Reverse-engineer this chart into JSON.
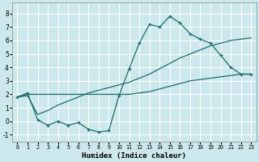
{
  "xlabel": "Humidex (Indice chaleur)",
  "xlim": [
    -0.5,
    23.5
  ],
  "ylim": [
    -1.5,
    8.8
  ],
  "xticks": [
    0,
    1,
    2,
    3,
    4,
    5,
    6,
    7,
    8,
    9,
    10,
    11,
    12,
    13,
    14,
    15,
    16,
    17,
    18,
    19,
    20,
    21,
    22,
    23
  ],
  "yticks": [
    -1,
    0,
    1,
    2,
    3,
    4,
    5,
    6,
    7,
    8
  ],
  "bg_color": "#cce8ec",
  "grid_color": "#ffffff",
  "line_color": "#1a6e6a",
  "line1_x": [
    0,
    1,
    2,
    3,
    4,
    5,
    6,
    7,
    8,
    9,
    10,
    11,
    12,
    13,
    14,
    15,
    16,
    17,
    18,
    19,
    20,
    21,
    22,
    23
  ],
  "line1_y": [
    1.8,
    2.1,
    0.1,
    -0.3,
    0.0,
    -0.3,
    -0.1,
    -0.6,
    -0.8,
    -0.7,
    1.9,
    3.9,
    5.8,
    7.2,
    7.0,
    7.8,
    7.3,
    6.5,
    6.1,
    5.8,
    4.9,
    4.0,
    3.5,
    3.5
  ],
  "line2_x": [
    0,
    1,
    2,
    3,
    4,
    5,
    6,
    7,
    8,
    9,
    10,
    11,
    12,
    13,
    14,
    15,
    16,
    17,
    18,
    19,
    20,
    21,
    22,
    23
  ],
  "line2_y": [
    1.8,
    2.0,
    2.0,
    2.0,
    2.0,
    2.0,
    2.0,
    2.0,
    2.0,
    2.0,
    2.0,
    2.0,
    2.1,
    2.2,
    2.4,
    2.6,
    2.8,
    3.0,
    3.1,
    3.2,
    3.3,
    3.4,
    3.5,
    3.5
  ],
  "line3_x": [
    0,
    1,
    2,
    3,
    4,
    5,
    6,
    7,
    8,
    9,
    10,
    11,
    12,
    13,
    14,
    15,
    16,
    17,
    18,
    19,
    20,
    21,
    22,
    23
  ],
  "line3_y": [
    1.8,
    1.9,
    0.5,
    0.8,
    1.2,
    1.5,
    1.8,
    2.1,
    2.3,
    2.5,
    2.7,
    2.9,
    3.2,
    3.5,
    3.9,
    4.3,
    4.7,
    5.0,
    5.3,
    5.6,
    5.8,
    6.0,
    6.1,
    6.2
  ]
}
